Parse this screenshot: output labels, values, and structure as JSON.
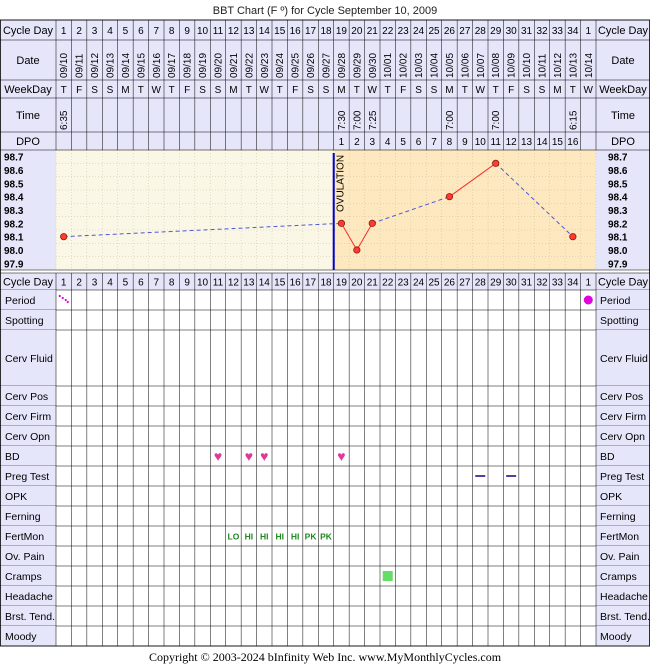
{
  "title": "BBT Chart (F º) for Cycle September 10, 2009",
  "copyright": "Copyright © 2003-2024 bInfinity Web Inc.     www.MyMonthlyCycles.com",
  "labels": {
    "cycle_day": "Cycle Day",
    "date": "Date",
    "weekday": "WeekDay",
    "time": "Time",
    "dpo": "DPO",
    "ovulation": "OVULATION"
  },
  "cycle_days": [
    "1",
    "2",
    "3",
    "4",
    "5",
    "6",
    "7",
    "8",
    "9",
    "10",
    "11",
    "12",
    "13",
    "14",
    "15",
    "16",
    "17",
    "18",
    "19",
    "20",
    "21",
    "22",
    "23",
    "24",
    "25",
    "26",
    "27",
    "28",
    "29",
    "30",
    "31",
    "32",
    "33",
    "34",
    "1"
  ],
  "dates": [
    "09/10",
    "09/11",
    "09/12",
    "09/13",
    "09/14",
    "09/15",
    "09/16",
    "09/17",
    "09/18",
    "09/19",
    "09/20",
    "09/21",
    "09/22",
    "09/23",
    "09/24",
    "09/25",
    "09/26",
    "09/27",
    "09/28",
    "09/29",
    "09/30",
    "10/01",
    "10/02",
    "10/03",
    "10/04",
    "10/05",
    "10/06",
    "10/07",
    "10/08",
    "10/09",
    "10/10",
    "10/11",
    "10/12",
    "10/13",
    "10/14"
  ],
  "weekdays": [
    "T",
    "F",
    "S",
    "S",
    "M",
    "T",
    "W",
    "T",
    "F",
    "S",
    "S",
    "M",
    "T",
    "W",
    "T",
    "F",
    "S",
    "S",
    "M",
    "T",
    "W",
    "T",
    "F",
    "S",
    "S",
    "M",
    "T",
    "W",
    "T",
    "F",
    "S",
    "S",
    "M",
    "T",
    "W"
  ],
  "times": [
    "6:35",
    "",
    "",
    "",
    "",
    "",
    "",
    "",
    "",
    "",
    "",
    "",
    "",
    "",
    "",
    "",
    "",
    "",
    "7:30",
    "7:00",
    "7:25",
    "",
    "",
    "",
    "",
    "7:00",
    "",
    "",
    "7:00",
    "",
    "",
    "",
    "",
    "6:15",
    ""
  ],
  "dpo": [
    "",
    "",
    "",
    "",
    "",
    "",
    "",
    "",
    "",
    "",
    "",
    "",
    "",
    "",
    "",
    "",
    "",
    "",
    "1",
    "2",
    "3",
    "4",
    "5",
    "6",
    "7",
    "8",
    "9",
    "10",
    "11",
    "12",
    "13",
    "14",
    "15",
    "16",
    ""
  ],
  "temp_labels": [
    "98.7",
    "98.6",
    "98.5",
    "98.4",
    "98.3",
    "98.2",
    "98.1",
    "98.0",
    "97.9"
  ],
  "rows": [
    "Period",
    "Spotting",
    "Cerv Fluid",
    "Cerv Pos",
    "Cerv Firm",
    "Cerv Opn",
    "BD",
    "Preg Test",
    "OPK",
    "Ferning",
    "FertMon",
    "Ov. Pain",
    "Cramps",
    "Headache",
    "Brst. Tend.",
    "Moody"
  ],
  "marks": {
    "period_spotting_day": 1,
    "period_dot_day": 35,
    "bd_days": [
      11,
      13,
      14,
      19
    ],
    "preg_test_days": [
      28,
      30
    ],
    "cramps_days": [
      22
    ],
    "fertmon": [
      {
        "day": 12,
        "text": "LO"
      },
      {
        "day": 13,
        "text": "HI"
      },
      {
        "day": 14,
        "text": "HI"
      },
      {
        "day": 15,
        "text": "HI"
      },
      {
        "day": 16,
        "text": "HI"
      },
      {
        "day": 17,
        "text": "PK"
      },
      {
        "day": 18,
        "text": "PK"
      }
    ]
  },
  "colors": {
    "header_bg": "#e6e6fa",
    "preov_bg": "#fbf7e6",
    "postov_bg": "#fde8c0",
    "point_fill": "#ff3b30",
    "line_color": "#ff2a2a",
    "dashed_color": "#4b5bd6",
    "ovulation_line": "#0000cc",
    "period_color": "#e000e0",
    "bd_color": "#e0389a",
    "preg_color": "#5a3aa0",
    "cramps_color": "#66dd66",
    "fertmon_color": "#1e8a1e"
  },
  "chart_data": {
    "type": "line",
    "title": "BBT Chart (F º) for Cycle September 10, 2009",
    "x": [
      1,
      19,
      20,
      21,
      26,
      29,
      34
    ],
    "y": [
      98.1,
      98.2,
      98.0,
      98.2,
      98.4,
      98.65,
      98.1
    ],
    "ylim": [
      97.9,
      98.7
    ],
    "ovulation_after_day": 18,
    "connections": [
      {
        "from": 1,
        "to": 19,
        "style": "dashed"
      },
      {
        "from": 19,
        "to": 20,
        "style": "solid"
      },
      {
        "from": 20,
        "to": 21,
        "style": "solid"
      },
      {
        "from": 21,
        "to": 26,
        "style": "dashed"
      },
      {
        "from": 26,
        "to": 29,
        "style": "solid"
      },
      {
        "from": 29,
        "to": 34,
        "style": "dashed"
      }
    ]
  }
}
